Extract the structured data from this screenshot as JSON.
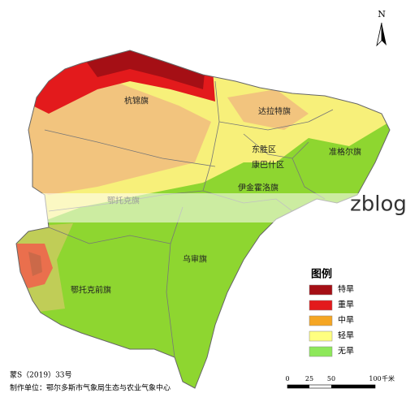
{
  "north": "N",
  "districts": [
    "杭锦旗",
    "达拉特旗",
    "东胜区",
    "康巴什区",
    "准格尔旗",
    "伊金霍洛旗",
    "鄂托克旗",
    "乌审旗",
    "鄂托克前旗"
  ],
  "legend": {
    "title": "图例",
    "items": [
      {
        "label": "特旱",
        "color": "#a50f15"
      },
      {
        "label": "重旱",
        "color": "#e31a1c"
      },
      {
        "label": "中旱",
        "color": "#f5a623"
      },
      {
        "label": "轻旱",
        "color": "#ffff80"
      },
      {
        "label": "无旱",
        "color": "#8ee85a"
      }
    ]
  },
  "scale": {
    "ticks": [
      "0",
      "25",
      "50",
      "100"
    ],
    "unit": "千米"
  },
  "footer": {
    "approval": "蒙S（2019）33号",
    "maker": "制作单位：鄂尔多斯市气象局生态与农业气象中心"
  },
  "watermark": "zblog"
}
